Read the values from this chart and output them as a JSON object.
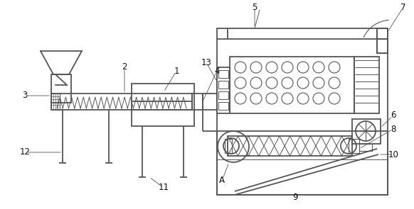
{
  "bg_color": "#ffffff",
  "line_color": "#555555",
  "line_width": 1.3,
  "figsize": [
    5.82,
    2.95
  ],
  "dpi": 100
}
